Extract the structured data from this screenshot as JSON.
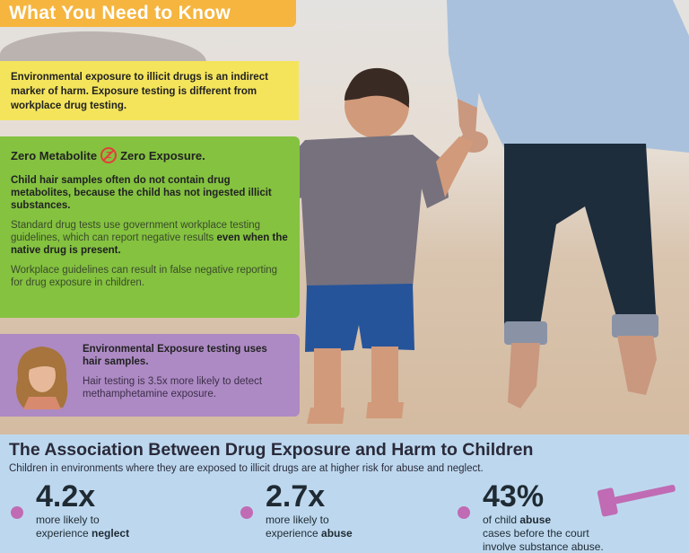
{
  "banner": {
    "title": "What You Need to Know"
  },
  "yellow_box": {
    "text": "Environmental exposure to illicit drugs is an indirect marker of harm. Exposure testing is different from workplace drug testing."
  },
  "green_box": {
    "title_left": "Zero Metabolite",
    "title_right": "Zero Exposure.",
    "icon": "no-symbol-icon",
    "bold_text": "Child hair samples often do not contain drug metabolites, because the child has not ingested illicit substances.",
    "para2_start": "Standard drug tests use government workplace testing guidelines, which can report negative results ",
    "para2_bold": "even when the native drug is present.",
    "para3": "Workplace guidelines can result in false negative reporting for drug exposure in children."
  },
  "purple_box": {
    "icon": "woman-portrait-icon",
    "bold_text": "Environmental Exposure testing uses hair samples.",
    "text": "Hair testing is 3.5x more likely to detect methamphetamine exposure."
  },
  "bottom": {
    "title": "The Association Between Drug Exposure and Harm to Children",
    "subtitle": "Children in environments where they are exposed to illicit drugs are at higher risk for abuse and neglect.",
    "stats": [
      {
        "value": "4.2x",
        "line1": "more likely to",
        "line2_pre": "experience ",
        "line2_bold": "neglect",
        "line2_post": ""
      },
      {
        "value": "2.7x",
        "line1": "more likely to",
        "line2_pre": "experience ",
        "line2_bold": "abuse",
        "line2_post": ""
      },
      {
        "value": "43%",
        "line1_pre": "of child ",
        "line1_bold": "abuse",
        "line2": "cases before the court",
        "line3": "involve substance abuse."
      }
    ],
    "accent_color": "#c06bb4",
    "gavel_icon": "gavel-icon"
  },
  "colors": {
    "banner": "#f5b53f",
    "yellow": "#f4e45b",
    "green": "#84c240",
    "purple": "#ad8ac4",
    "bottom_bg": "#bdd8ee"
  }
}
